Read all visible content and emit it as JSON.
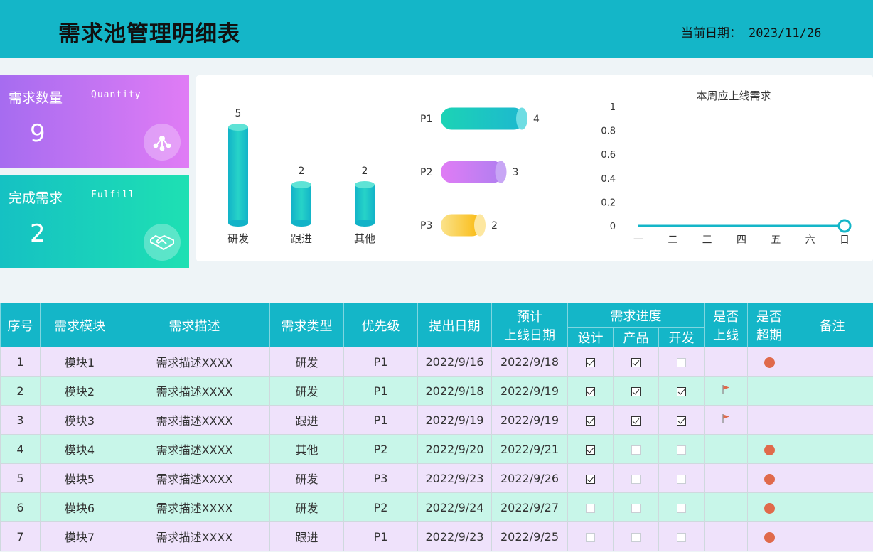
{
  "header": {
    "title": "需求池管理明细表",
    "date_label": "当前日期：",
    "date_value": "2023/11/26"
  },
  "kpis": [
    {
      "label": "需求数量",
      "sub": "Quantity",
      "value": "9",
      "icon": "network-icon"
    },
    {
      "label": "完成需求",
      "sub": "Fulfill",
      "value": "2",
      "icon": "handshake-icon"
    }
  ],
  "colors": {
    "accent": "#14b6c8",
    "row_odd": "#efe2fb",
    "row_even": "#c8f6e9",
    "overdue_dot": "#e06a4b",
    "flag": "#e06a4b"
  },
  "chart_data": [
    {
      "type": "bar",
      "categories": [
        "研发",
        "跟进",
        "其他"
      ],
      "values": [
        5,
        2,
        2
      ],
      "title": ""
    },
    {
      "type": "bar",
      "orientation": "horizontal",
      "categories": [
        "P1",
        "P2",
        "P3"
      ],
      "values": [
        4,
        3,
        2
      ],
      "title": ""
    },
    {
      "type": "line",
      "title": "本周应上线需求",
      "categories": [
        "一",
        "二",
        "三",
        "四",
        "五",
        "六",
        "日"
      ],
      "values": [
        0,
        0,
        0,
        0,
        0,
        0,
        0
      ],
      "yticks": [
        "0",
        "0.2",
        "0.4",
        "0.6",
        "0.8",
        "1"
      ],
      "ylim": [
        0,
        1
      ]
    }
  ],
  "table": {
    "headers": {
      "seq": "序号",
      "module": "需求模块",
      "desc": "需求描述",
      "type": "需求类型",
      "priority": "优先级",
      "submit": "提出日期",
      "expected_l1": "预计",
      "expected_l2": "上线日期",
      "progress": "需求进度",
      "design": "设计",
      "product": "产品",
      "dev": "开发",
      "online_l1": "是否",
      "online_l2": "上线",
      "overdue_l1": "是否",
      "overdue_l2": "超期",
      "remark": "备注"
    },
    "rows": [
      {
        "seq": "1",
        "module": "模块1",
        "desc": "需求描述XXXX",
        "type": "研发",
        "priority": "P1",
        "submit": "2022/9/16",
        "expected": "2022/9/18",
        "design": true,
        "product": true,
        "dev": false,
        "online": false,
        "overdue": true
      },
      {
        "seq": "2",
        "module": "模块2",
        "desc": "需求描述XXXX",
        "type": "研发",
        "priority": "P1",
        "submit": "2022/9/18",
        "expected": "2022/9/19",
        "design": true,
        "product": true,
        "dev": true,
        "online": true,
        "overdue": false
      },
      {
        "seq": "3",
        "module": "模块3",
        "desc": "需求描述XXXX",
        "type": "跟进",
        "priority": "P1",
        "submit": "2022/9/19",
        "expected": "2022/9/19",
        "design": true,
        "product": true,
        "dev": true,
        "online": true,
        "overdue": false
      },
      {
        "seq": "4",
        "module": "模块4",
        "desc": "需求描述XXXX",
        "type": "其他",
        "priority": "P2",
        "submit": "2022/9/20",
        "expected": "2022/9/21",
        "design": true,
        "product": false,
        "dev": false,
        "online": false,
        "overdue": true
      },
      {
        "seq": "5",
        "module": "模块5",
        "desc": "需求描述XXXX",
        "type": "研发",
        "priority": "P3",
        "submit": "2022/9/23",
        "expected": "2022/9/26",
        "design": true,
        "product": false,
        "dev": false,
        "online": false,
        "overdue": true
      },
      {
        "seq": "6",
        "module": "模块6",
        "desc": "需求描述XXXX",
        "type": "研发",
        "priority": "P2",
        "submit": "2022/9/24",
        "expected": "2022/9/27",
        "design": false,
        "product": false,
        "dev": false,
        "online": false,
        "overdue": true
      },
      {
        "seq": "7",
        "module": "模块7",
        "desc": "需求描述XXXX",
        "type": "跟进",
        "priority": "P1",
        "submit": "2022/9/23",
        "expected": "2022/9/25",
        "design": false,
        "product": false,
        "dev": false,
        "online": false,
        "overdue": true
      }
    ]
  }
}
